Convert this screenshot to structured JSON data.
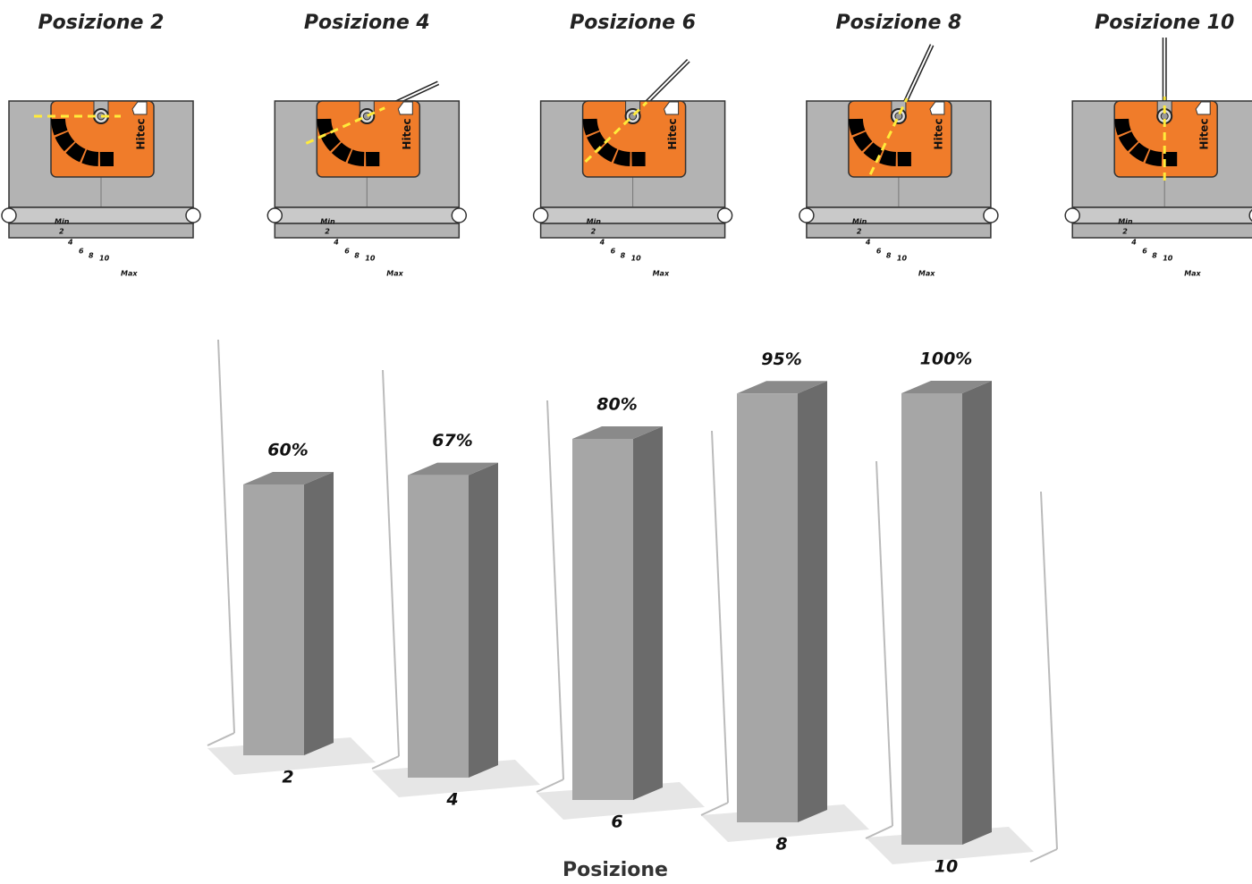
{
  "illustrations": [
    {
      "title": "Posizione 2"
    },
    {
      "title": "Posizione 4"
    },
    {
      "title": "Posizione 6"
    },
    {
      "title": "Posizione 8"
    },
    {
      "title": "Posizione 10"
    }
  ],
  "device_labels": [
    "Min",
    "2",
    "4",
    "6",
    "8",
    "10",
    "Max",
    "Hitec"
  ],
  "chart_data": {
    "type": "bar",
    "x_label": "Posizione",
    "categories": [
      "2",
      "4",
      "6",
      "8",
      "10"
    ],
    "values": [
      60,
      67,
      80,
      95,
      100
    ],
    "value_labels": [
      "60%",
      "67%",
      "80%",
      "95%",
      "100%"
    ],
    "color": "#a6a6a6"
  }
}
